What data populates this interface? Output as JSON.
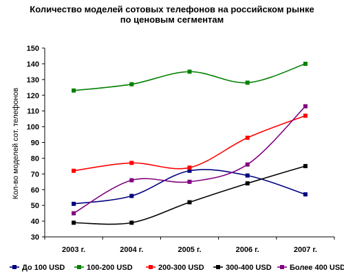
{
  "chart_data": {
    "type": "line",
    "title": "Количество моделей сотовых телефонов на российском рынке",
    "subtitle": "по ценовым сегментам",
    "xlabel": "",
    "ylabel": "Кол-во моделей сот. телефонов",
    "categories": [
      "2003 г.",
      "2004 г.",
      "2005 г.",
      "2006 г.",
      "2007 г."
    ],
    "ylim": [
      30,
      150
    ],
    "yticks": [
      30,
      40,
      50,
      60,
      70,
      80,
      90,
      100,
      110,
      120,
      130,
      140,
      150
    ],
    "grid": false,
    "smooth": true,
    "legend_position": "bottom",
    "series": [
      {
        "name": "До 100 USD",
        "color": "#000080",
        "values": [
          51,
          56,
          72,
          69,
          57
        ]
      },
      {
        "name": "100-200 USD",
        "color": "#008000",
        "values": [
          123,
          127,
          135,
          128,
          140
        ]
      },
      {
        "name": "200-300 USD",
        "color": "#ff0000",
        "values": [
          72,
          77,
          74,
          93,
          107
        ]
      },
      {
        "name": "300-400 USD",
        "color": "#000000",
        "values": [
          39,
          39,
          52,
          64,
          75
        ]
      },
      {
        "name": "Более 400 USD",
        "color": "#800080",
        "values": [
          45,
          66,
          65,
          76,
          113
        ]
      }
    ]
  }
}
